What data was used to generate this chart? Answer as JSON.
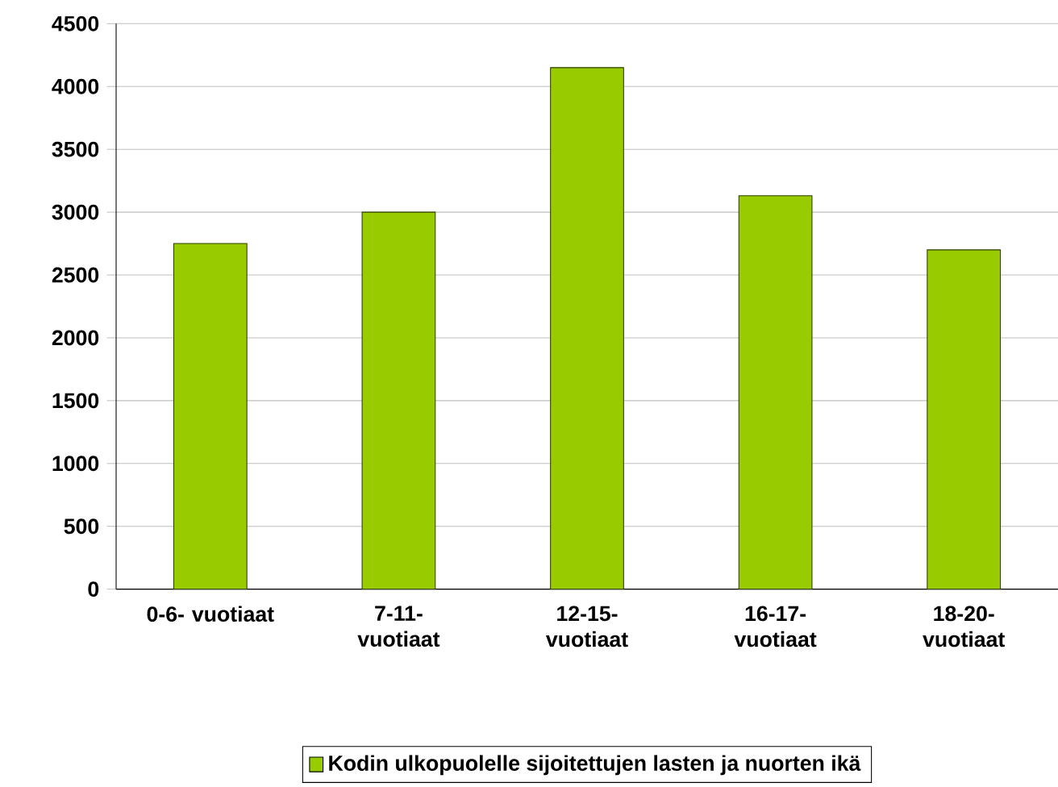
{
  "chart_data": {
    "type": "bar",
    "categories": [
      "0-6- vuotiaat",
      "7-11- vuotiaat",
      "12-15- vuotiaat",
      "16-17- vuotiaat",
      "18-20- vuotiaat"
    ],
    "series": [
      {
        "name": "Kodin ulkopuolelle sijoitettujen lasten ja nuorten ikä",
        "color": "#99cc00",
        "values": [
          2750,
          3000,
          4150,
          3130,
          2700
        ]
      }
    ],
    "ylim": [
      0,
      4500
    ],
    "yticks": [
      0,
      500,
      1000,
      1500,
      2000,
      2500,
      3000,
      3500,
      4000,
      4500
    ],
    "grid": "y",
    "legend": "bottom"
  }
}
